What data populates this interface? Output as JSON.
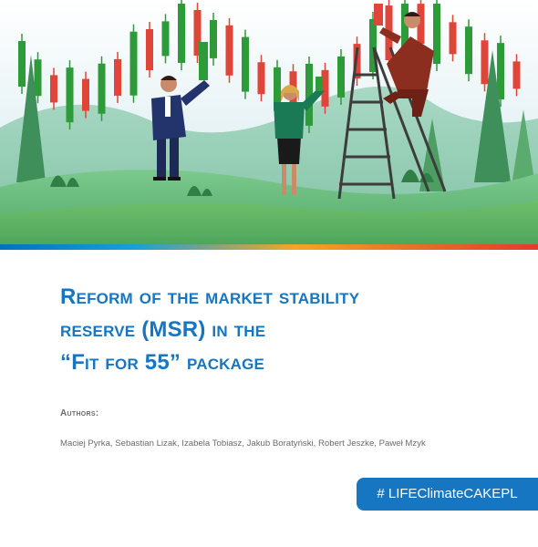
{
  "title_lines": [
    "Reform of the market stability",
    "reserve (MSR) in the",
    "“Fit for 55” package"
  ],
  "authors_label": "Authors:",
  "authors": "Maciej Pyrka, Sebastian Lizak, Izabela Tobiasz, Jakub Boratyński, Robert Jeszke, Paweł Mzyk",
  "hashtag": "# LIFEClimateCAKEPL",
  "colors": {
    "title": "#1776c2",
    "hashtag_bg": "#1776c2",
    "candle_up": "#2e9b3a",
    "candle_down": "#e0453a"
  },
  "hero": {
    "description_icon": "market-illustration",
    "candles": [
      {
        "dir": "up",
        "h": 50
      },
      {
        "dir": "up",
        "h": 40
      },
      {
        "dir": "down",
        "h": 30
      },
      {
        "dir": "up",
        "h": 60
      },
      {
        "dir": "down",
        "h": 35
      },
      {
        "dir": "up",
        "h": 55
      },
      {
        "dir": "down",
        "h": 40
      },
      {
        "dir": "up",
        "h": 70
      },
      {
        "dir": "down",
        "h": 45
      },
      {
        "dir": "up",
        "h": 38
      },
      {
        "dir": "up",
        "h": 65
      },
      {
        "dir": "down",
        "h": 50
      },
      {
        "dir": "up",
        "h": 42
      },
      {
        "dir": "down",
        "h": 55
      },
      {
        "dir": "up",
        "h": 60
      },
      {
        "dir": "down",
        "h": 35
      },
      {
        "dir": "up",
        "h": 48
      },
      {
        "dir": "down",
        "h": 52
      },
      {
        "dir": "up",
        "h": 68
      },
      {
        "dir": "down",
        "h": 40
      },
      {
        "dir": "up",
        "h": 45
      },
      {
        "dir": "down",
        "h": 38
      },
      {
        "dir": "up",
        "h": 58
      },
      {
        "dir": "down",
        "h": 60
      },
      {
        "dir": "up",
        "h": 50
      },
      {
        "dir": "down",
        "h": 44
      },
      {
        "dir": "up",
        "h": 66
      },
      {
        "dir": "down",
        "h": 35
      },
      {
        "dir": "up",
        "h": 52
      },
      {
        "dir": "down",
        "h": 48
      },
      {
        "dir": "up",
        "h": 62
      },
      {
        "dir": "down",
        "h": 30
      }
    ]
  }
}
